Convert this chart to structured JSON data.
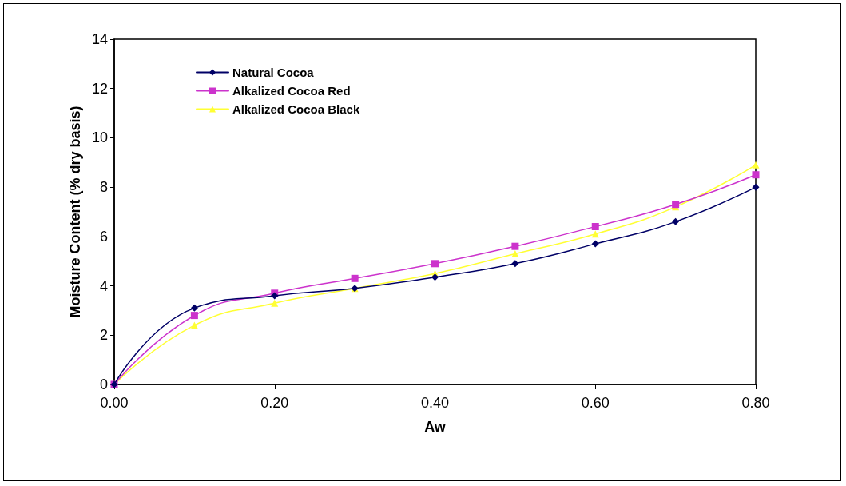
{
  "chart_data": {
    "type": "line",
    "xlabel": "Aw",
    "ylabel": "Moisture Content (% dry basis)",
    "x": [
      0,
      0.1,
      0.2,
      0.3,
      0.4,
      0.5,
      0.6,
      0.7,
      0.8
    ],
    "series": [
      {
        "name": "Natural Cocoa",
        "color": "#000066",
        "marker": "diamond",
        "values": [
          0,
          3.1,
          3.6,
          3.9,
          4.35,
          4.9,
          5.7,
          6.6,
          8.0
        ]
      },
      {
        "name": "Alkalized Cocoa Red",
        "color": "#cc33cc",
        "marker": "square",
        "values": [
          0,
          2.8,
          3.7,
          4.3,
          4.9,
          5.6,
          6.4,
          7.3,
          8.5
        ]
      },
      {
        "name": "Alkalized Cocoa Black",
        "color": "#ffff33",
        "marker": "triangle",
        "values": [
          0,
          2.4,
          3.3,
          3.9,
          4.5,
          5.3,
          6.1,
          7.2,
          8.9
        ]
      }
    ],
    "xlim": [
      0,
      0.8
    ],
    "xticks": [
      {
        "value": 0,
        "label": "0.00"
      },
      {
        "value": 0.2,
        "label": "0.20"
      },
      {
        "value": 0.4,
        "label": "0.40"
      },
      {
        "value": 0.6,
        "label": "0.60"
      },
      {
        "value": 0.8,
        "label": "0.80"
      }
    ],
    "ylim": [
      0,
      14
    ],
    "yticks": [
      0,
      2,
      4,
      6,
      8,
      10,
      12,
      14
    ],
    "grid": false,
    "legend": "top left",
    "line_style": "solid"
  }
}
